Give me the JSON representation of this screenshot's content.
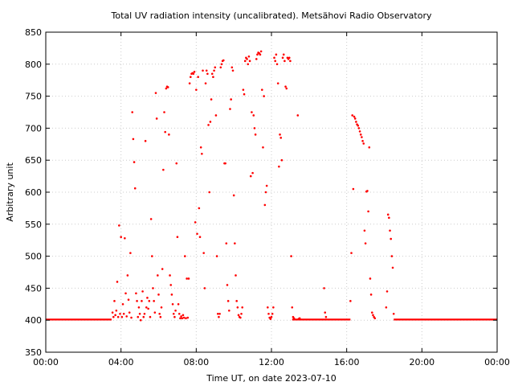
{
  "chart_data": {
    "type": "scatter",
    "title": "Total UV radiation intensity (uncalibrated). Metsähovi Radio Observatory",
    "xlabel": "Time UT, on date 2023-07-10",
    "ylabel": "Arbitrary unit",
    "xlim": [
      0,
      24
    ],
    "ylim": [
      350,
      850
    ],
    "x_unit": "hours UT",
    "x_ticks": [
      {
        "value": 0,
        "label": "00:00"
      },
      {
        "value": 4,
        "label": "04:00"
      },
      {
        "value": 8,
        "label": "08:00"
      },
      {
        "value": 12,
        "label": "12:00"
      },
      {
        "value": 16,
        "label": "16:00"
      },
      {
        "value": 20,
        "label": "20:00"
      },
      {
        "value": 24,
        "label": "00:00"
      }
    ],
    "y_ticks": [
      {
        "value": 350,
        "label": "350"
      },
      {
        "value": 400,
        "label": "400"
      },
      {
        "value": 450,
        "label": "450"
      },
      {
        "value": 500,
        "label": "500"
      },
      {
        "value": 550,
        "label": "550"
      },
      {
        "value": 600,
        "label": "600"
      },
      {
        "value": 650,
        "label": "650"
      },
      {
        "value": 700,
        "label": "700"
      },
      {
        "value": 750,
        "label": "750"
      },
      {
        "value": 800,
        "label": "800"
      },
      {
        "value": 850,
        "label": "850"
      }
    ],
    "grid": true,
    "marker_color": "#ff0000",
    "grid_color": "#cccccc",
    "baseline_segments": [
      {
        "x_start": 0.0,
        "x_end": 3.5,
        "y": 401
      },
      {
        "x_start": 13.1,
        "x_end": 16.2,
        "y": 401
      },
      {
        "x_start": 18.5,
        "x_end": 24.0,
        "y": 401
      }
    ],
    "series": [
      {
        "values": [
          [
            3.55,
            412
          ],
          [
            3.6,
            405
          ],
          [
            3.65,
            430
          ],
          [
            3.7,
            408
          ],
          [
            3.75,
            415
          ],
          [
            3.8,
            460
          ],
          [
            3.85,
            405
          ],
          [
            3.9,
            548
          ],
          [
            3.95,
            410
          ],
          [
            4.0,
            530
          ],
          [
            4.05,
            405
          ],
          [
            4.1,
            425
          ],
          [
            4.15,
            410
          ],
          [
            4.2,
            528
          ],
          [
            4.25,
            442
          ],
          [
            4.3,
            406
          ],
          [
            4.35,
            470
          ],
          [
            4.4,
            432
          ],
          [
            4.45,
            412
          ],
          [
            4.5,
            505
          ],
          [
            4.55,
            404
          ],
          [
            4.6,
            725
          ],
          [
            4.65,
            683
          ],
          [
            4.7,
            647
          ],
          [
            4.75,
            606
          ],
          [
            4.8,
            442
          ],
          [
            4.85,
            430
          ],
          [
            4.9,
            405
          ],
          [
            4.95,
            420
          ],
          [
            5.0,
            410
          ],
          [
            5.05,
            400
          ],
          [
            5.1,
            430
          ],
          [
            5.15,
            445
          ],
          [
            5.2,
            405
          ],
          [
            5.25,
            410
          ],
          [
            5.3,
            680
          ],
          [
            5.35,
            420
          ],
          [
            5.4,
            435
          ],
          [
            5.45,
            418
          ],
          [
            5.5,
            430
          ],
          [
            5.55,
            405
          ],
          [
            5.6,
            558
          ],
          [
            5.65,
            500
          ],
          [
            5.7,
            450
          ],
          [
            5.75,
            430
          ],
          [
            5.8,
            412
          ],
          [
            5.85,
            755
          ],
          [
            5.9,
            715
          ],
          [
            5.95,
            470
          ],
          [
            6.0,
            440
          ],
          [
            6.05,
            410
          ],
          [
            6.1,
            405
          ],
          [
            6.15,
            420
          ],
          [
            6.2,
            480
          ],
          [
            6.25,
            635
          ],
          [
            6.3,
            725
          ],
          [
            6.35,
            694
          ],
          [
            6.4,
            762
          ],
          [
            6.45,
            765
          ],
          [
            6.5,
            764
          ],
          [
            6.55,
            690
          ],
          [
            6.6,
            470
          ],
          [
            6.65,
            455
          ],
          [
            6.7,
            440
          ],
          [
            6.75,
            425
          ],
          [
            6.8,
            410
          ],
          [
            6.85,
            405
          ],
          [
            6.9,
            415
          ],
          [
            6.95,
            645
          ],
          [
            7.0,
            530
          ],
          [
            7.05,
            425
          ],
          [
            7.1,
            410
          ],
          [
            7.15,
            403
          ],
          [
            7.2,
            406
          ],
          [
            7.25,
            403
          ],
          [
            7.3,
            408
          ],
          [
            7.35,
            404
          ],
          [
            7.4,
            500
          ],
          [
            7.45,
            403
          ],
          [
            7.5,
            465
          ],
          [
            7.55,
            404
          ],
          [
            7.6,
            465
          ],
          [
            7.65,
            770
          ],
          [
            7.7,
            780
          ],
          [
            7.75,
            785
          ],
          [
            7.8,
            786
          ],
          [
            7.85,
            785
          ],
          [
            7.9,
            788
          ],
          [
            7.95,
            553
          ],
          [
            8.0,
            760
          ],
          [
            8.05,
            535
          ],
          [
            8.1,
            780
          ],
          [
            8.15,
            575
          ],
          [
            8.2,
            530
          ],
          [
            8.25,
            670
          ],
          [
            8.3,
            660
          ],
          [
            8.35,
            790
          ],
          [
            8.4,
            505
          ],
          [
            8.45,
            450
          ],
          [
            8.5,
            770
          ],
          [
            8.55,
            790
          ],
          [
            8.6,
            785
          ],
          [
            8.65,
            705
          ],
          [
            8.7,
            600
          ],
          [
            8.75,
            710
          ],
          [
            8.8,
            745
          ],
          [
            8.85,
            785
          ],
          [
            8.9,
            780
          ],
          [
            8.95,
            790
          ],
          [
            9.0,
            795
          ],
          [
            9.05,
            720
          ],
          [
            9.1,
            500
          ],
          [
            9.15,
            410
          ],
          [
            9.2,
            405
          ],
          [
            9.25,
            410
          ],
          [
            9.3,
            795
          ],
          [
            9.35,
            800
          ],
          [
            9.4,
            805
          ],
          [
            9.45,
            806
          ],
          [
            9.5,
            645
          ],
          [
            9.55,
            645
          ],
          [
            9.6,
            520
          ],
          [
            9.65,
            455
          ],
          [
            9.7,
            430
          ],
          [
            9.75,
            415
          ],
          [
            9.8,
            730
          ],
          [
            9.85,
            745
          ],
          [
            9.9,
            795
          ],
          [
            9.95,
            790
          ],
          [
            10.0,
            595
          ],
          [
            10.05,
            520
          ],
          [
            10.1,
            470
          ],
          [
            10.15,
            430
          ],
          [
            10.2,
            420
          ],
          [
            10.25,
            408
          ],
          [
            10.3,
            405
          ],
          [
            10.35,
            404
          ],
          [
            10.4,
            410
          ],
          [
            10.45,
            420
          ],
          [
            10.5,
            760
          ],
          [
            10.55,
            753
          ],
          [
            10.6,
            805
          ],
          [
            10.65,
            810
          ],
          [
            10.7,
            808
          ],
          [
            10.75,
            800
          ],
          [
            10.8,
            812
          ],
          [
            10.85,
            805
          ],
          [
            10.9,
            625
          ],
          [
            10.95,
            725
          ],
          [
            11.0,
            630
          ],
          [
            11.05,
            720
          ],
          [
            11.1,
            700
          ],
          [
            11.15,
            690
          ],
          [
            11.2,
            808
          ],
          [
            11.25,
            815
          ],
          [
            11.3,
            818
          ],
          [
            11.35,
            817
          ],
          [
            11.4,
            815
          ],
          [
            11.45,
            820
          ],
          [
            11.5,
            760
          ],
          [
            11.55,
            670
          ],
          [
            11.6,
            750
          ],
          [
            11.65,
            580
          ],
          [
            11.7,
            600
          ],
          [
            11.75,
            610
          ],
          [
            11.8,
            420
          ],
          [
            11.85,
            410
          ],
          [
            11.9,
            404
          ],
          [
            11.95,
            402
          ],
          [
            12.0,
            405
          ],
          [
            12.05,
            410
          ],
          [
            12.1,
            420
          ],
          [
            12.15,
            810
          ],
          [
            12.2,
            805
          ],
          [
            12.25,
            815
          ],
          [
            12.3,
            800
          ],
          [
            12.35,
            770
          ],
          [
            12.4,
            640
          ],
          [
            12.45,
            690
          ],
          [
            12.5,
            685
          ],
          [
            12.55,
            650
          ],
          [
            12.6,
            810
          ],
          [
            12.65,
            815
          ],
          [
            12.7,
            805
          ],
          [
            12.75,
            765
          ],
          [
            12.8,
            762
          ],
          [
            12.85,
            810
          ],
          [
            12.9,
            808
          ],
          [
            12.95,
            810
          ],
          [
            13.0,
            805
          ],
          [
            13.05,
            500
          ],
          [
            13.1,
            420
          ],
          [
            13.15,
            405
          ],
          [
            13.2,
            403
          ],
          [
            13.4,
            720
          ],
          [
            13.45,
            402
          ],
          [
            13.5,
            403
          ],
          [
            14.8,
            450
          ],
          [
            14.85,
            412
          ],
          [
            14.9,
            405
          ],
          [
            16.2,
            430
          ],
          [
            16.25,
            505
          ],
          [
            16.3,
            720
          ],
          [
            16.35,
            605
          ],
          [
            16.4,
            718
          ],
          [
            16.45,
            715
          ],
          [
            16.5,
            710
          ],
          [
            16.55,
            706
          ],
          [
            16.6,
            704
          ],
          [
            16.65,
            700
          ],
          [
            16.7,
            695
          ],
          [
            16.75,
            690
          ],
          [
            16.8,
            686
          ],
          [
            16.85,
            680
          ],
          [
            16.9,
            676
          ],
          [
            16.95,
            540
          ],
          [
            17.0,
            520
          ],
          [
            17.05,
            601
          ],
          [
            17.1,
            602
          ],
          [
            17.15,
            570
          ],
          [
            17.2,
            670
          ],
          [
            17.25,
            465
          ],
          [
            17.3,
            440
          ],
          [
            17.35,
            412
          ],
          [
            17.4,
            408
          ],
          [
            17.45,
            405
          ],
          [
            17.5,
            403
          ],
          [
            18.1,
            420
          ],
          [
            18.15,
            445
          ],
          [
            18.2,
            565
          ],
          [
            18.25,
            560
          ],
          [
            18.3,
            540
          ],
          [
            18.35,
            527
          ],
          [
            18.4,
            500
          ],
          [
            18.45,
            482
          ],
          [
            18.5,
            410
          ]
        ]
      }
    ]
  }
}
